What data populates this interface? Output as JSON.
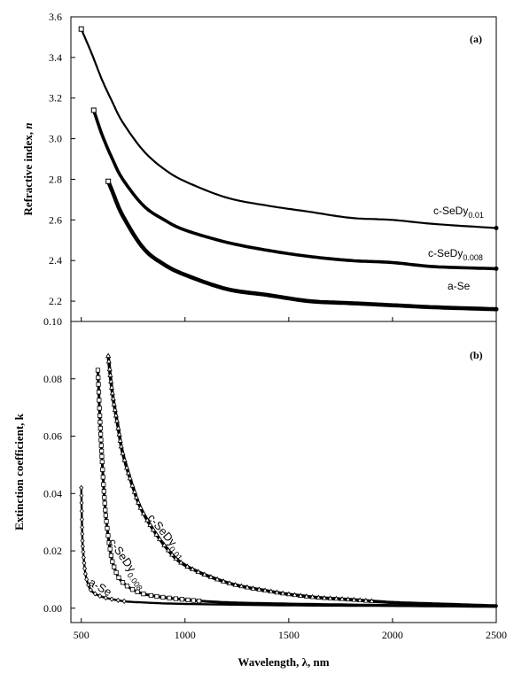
{
  "chart_data": [
    {
      "type": "line",
      "panel": "(a)",
      "xlabel": "Wavelength, λ, nm",
      "ylabel": "Refractive index, ",
      "ylabel_symbol": "n",
      "xlim": [
        450,
        2500
      ],
      "ylim": [
        2.1,
        3.6
      ],
      "xticks": [
        500,
        1000,
        1500,
        2000,
        2500
      ],
      "yticks": [
        2.2,
        2.4,
        2.6,
        2.8,
        3.0,
        3.2,
        3.4,
        3.6
      ],
      "series": [
        {
          "name": "c-SeDy",
          "sub": "0.01",
          "x": [
            500,
            550,
            600,
            650,
            700,
            800,
            900,
            1000,
            1200,
            1400,
            1600,
            1800,
            2000,
            2200,
            2500
          ],
          "y": [
            3.54,
            3.42,
            3.29,
            3.18,
            3.08,
            2.94,
            2.85,
            2.79,
            2.71,
            2.67,
            2.64,
            2.61,
            2.6,
            2.58,
            2.56
          ]
        },
        {
          "name": "c-SeDy",
          "sub": "0.008",
          "x": [
            560,
            600,
            650,
            700,
            800,
            900,
            1000,
            1200,
            1400,
            1600,
            1800,
            2000,
            2200,
            2500
          ],
          "y": [
            3.14,
            3.02,
            2.9,
            2.8,
            2.67,
            2.6,
            2.55,
            2.49,
            2.45,
            2.42,
            2.4,
            2.39,
            2.37,
            2.36
          ]
        },
        {
          "name": "a-Se",
          "sub": "",
          "x": [
            630,
            650,
            700,
            800,
            900,
            1000,
            1200,
            1400,
            1600,
            1800,
            2000,
            2200,
            2500
          ],
          "y": [
            2.79,
            2.74,
            2.62,
            2.46,
            2.38,
            2.33,
            2.26,
            2.23,
            2.2,
            2.19,
            2.18,
            2.17,
            2.16
          ]
        }
      ]
    },
    {
      "type": "scatter",
      "panel": "(b)",
      "xlabel": "Wavelength, λ, nm",
      "ylabel": "Extinction coefficient, k",
      "xlim": [
        450,
        2500
      ],
      "ylim": [
        -0.005,
        0.1
      ],
      "xticks": [
        500,
        1000,
        1500,
        2000,
        2500
      ],
      "yticks": [
        0.0,
        0.02,
        0.04,
        0.06,
        0.08,
        0.1
      ],
      "series": [
        {
          "name": "c-SeDy",
          "sub": "0.01",
          "marker": "triangle",
          "x": [
            630,
            650,
            680,
            700,
            750,
            800,
            900,
            1000,
            1200,
            1400,
            1600,
            1800,
            2000,
            2200,
            2500
          ],
          "y": [
            0.088,
            0.075,
            0.062,
            0.054,
            0.042,
            0.033,
            0.022,
            0.015,
            0.009,
            0.006,
            0.004,
            0.003,
            0.002,
            0.0015,
            0.0008
          ]
        },
        {
          "name": "c-SeDy",
          "sub": "0.008",
          "marker": "square",
          "x": [
            580,
            590,
            600,
            610,
            620,
            640,
            660,
            700,
            800,
            1000,
            1200,
            1500,
            2000,
            2500
          ],
          "y": [
            0.083,
            0.066,
            0.052,
            0.04,
            0.031,
            0.02,
            0.014,
            0.009,
            0.005,
            0.003,
            0.002,
            0.0015,
            0.001,
            0.0008
          ]
        },
        {
          "name": "a-Se",
          "sub": "",
          "marker": "diamond",
          "x": [
            500,
            505,
            510,
            515,
            520,
            530,
            550,
            600,
            700,
            800,
            1000,
            1500,
            2000,
            2500
          ],
          "y": [
            0.042,
            0.025,
            0.019,
            0.015,
            0.012,
            0.009,
            0.006,
            0.004,
            0.0025,
            0.002,
            0.0015,
            0.001,
            0.0008,
            0.0005
          ]
        }
      ],
      "x_tick_labels": [
        "500",
        "1000",
        "1500",
        "2000",
        "2500"
      ],
      "y_tick_labels": [
        "0.00",
        "0.02",
        "0.04",
        "0.06",
        "0.08",
        "0.10"
      ]
    }
  ],
  "y_tick_labels_a": [
    "2.2",
    "2.4",
    "2.6",
    "2.8",
    "3.0",
    "3.2",
    "3.4",
    "3.6"
  ]
}
